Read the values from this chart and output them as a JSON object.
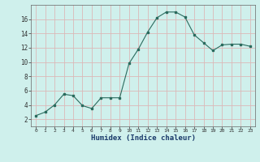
{
  "x": [
    0,
    1,
    2,
    3,
    4,
    5,
    6,
    7,
    8,
    9,
    10,
    11,
    12,
    13,
    14,
    15,
    16,
    17,
    18,
    19,
    20,
    21,
    22,
    23
  ],
  "y": [
    2.5,
    3.0,
    4.0,
    5.5,
    5.3,
    3.9,
    3.5,
    5.0,
    5.0,
    5.0,
    9.8,
    11.8,
    14.2,
    16.2,
    17.0,
    17.0,
    16.3,
    13.8,
    12.7,
    11.6,
    12.4,
    12.5,
    12.5,
    12.2
  ],
  "line_color": "#2a6b5e",
  "marker": "s",
  "marker_size": 2,
  "bg_color": "#cff0ec",
  "grid_color": "#dbb8b8",
  "xlabel": "Humidex (Indice chaleur)",
  "ylim": [
    1,
    18
  ],
  "xlim": [
    -0.5,
    23.5
  ],
  "yticks": [
    2,
    4,
    6,
    8,
    10,
    12,
    14,
    16
  ],
  "xticks": [
    0,
    1,
    2,
    3,
    4,
    5,
    6,
    7,
    8,
    9,
    10,
    11,
    12,
    13,
    14,
    15,
    16,
    17,
    18,
    19,
    20,
    21,
    22,
    23
  ]
}
